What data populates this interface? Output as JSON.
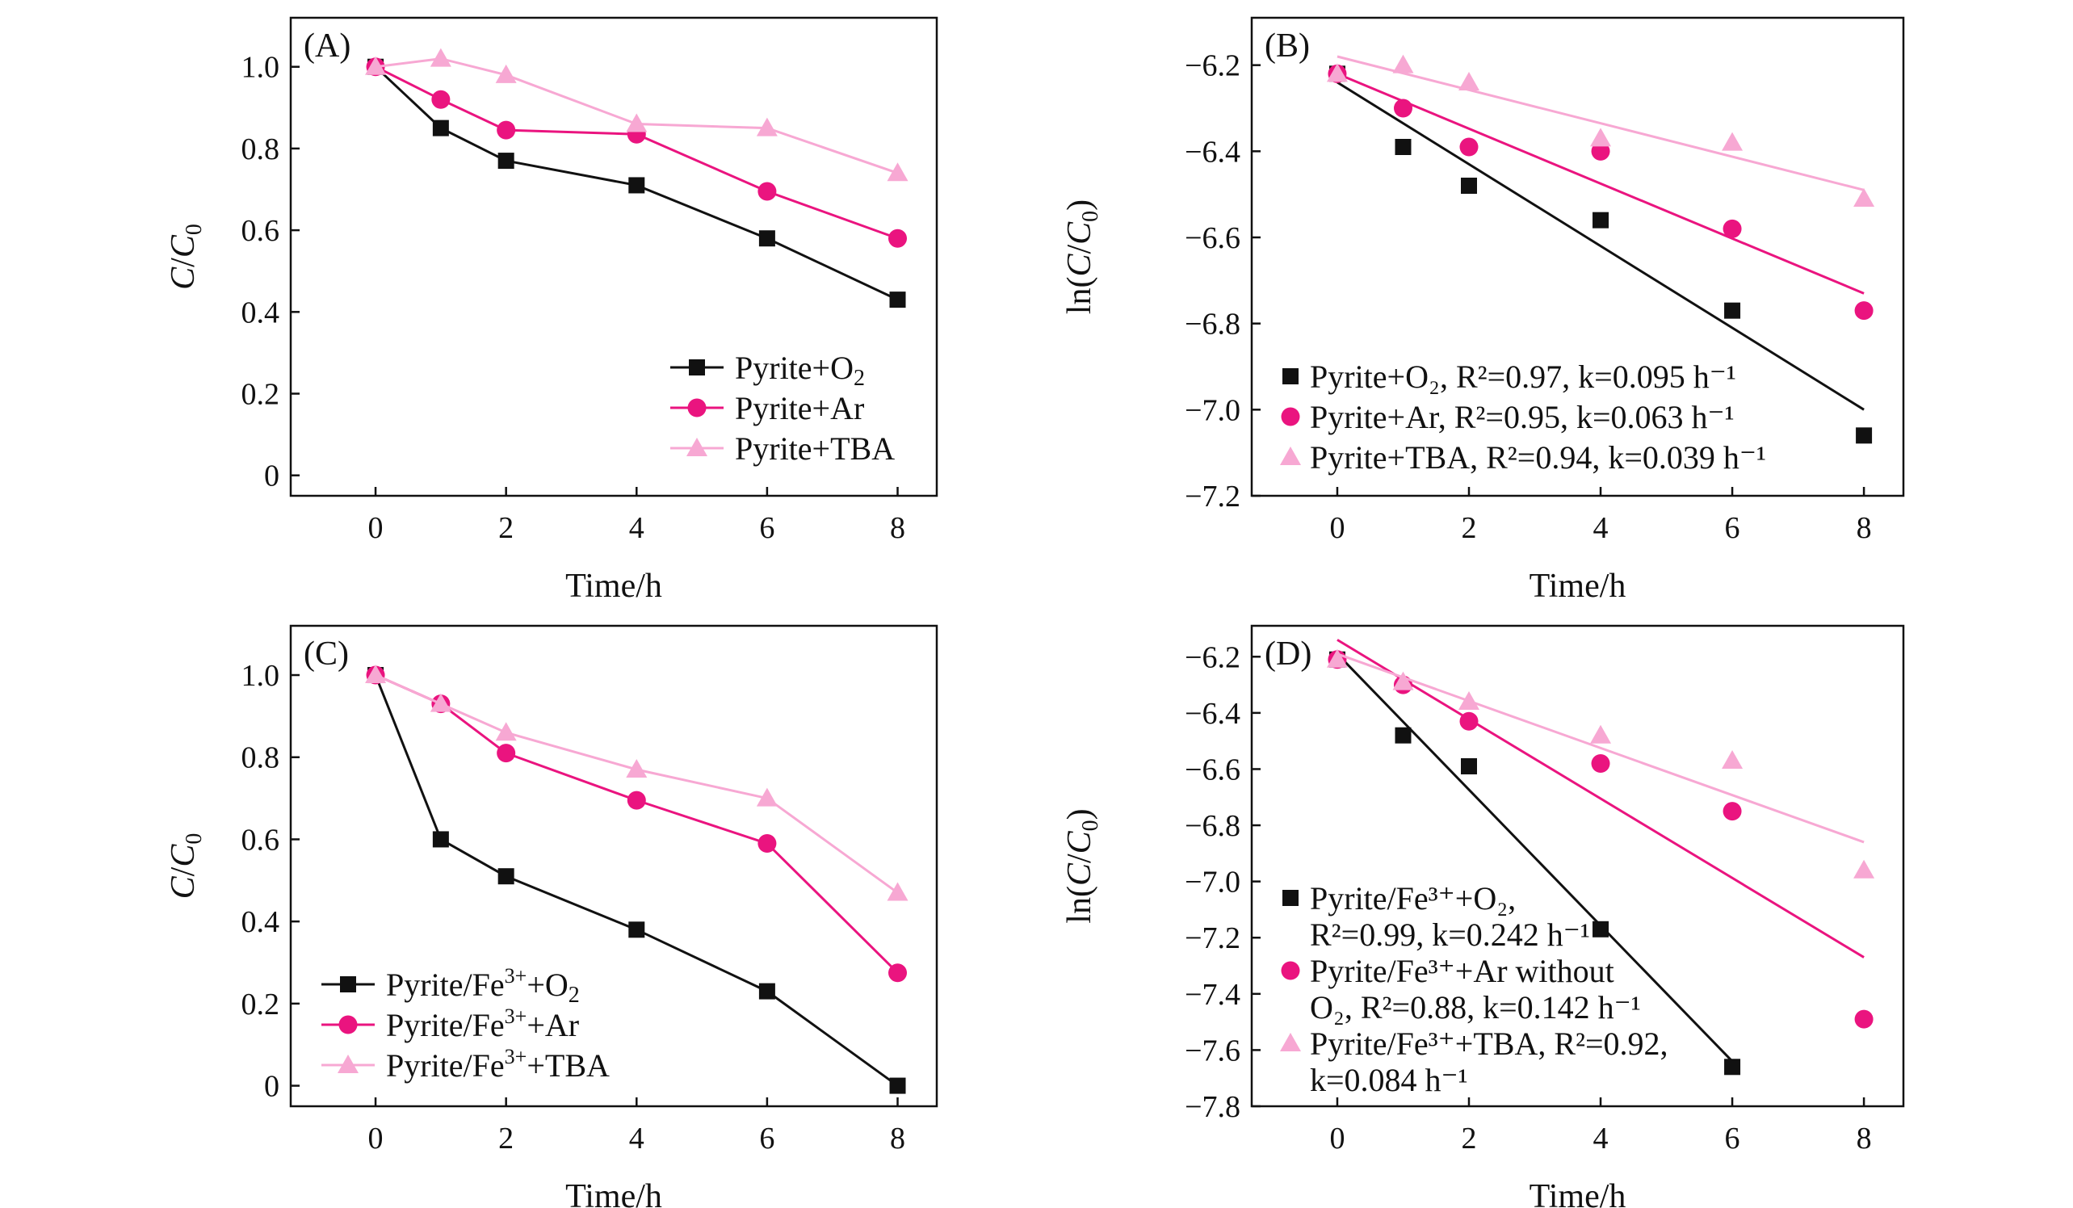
{
  "colors": {
    "o2": "#111111",
    "ar": "#ea147f",
    "tba": "#f7a8d3",
    "axis": "#111111"
  },
  "chart_data": [
    {
      "id": "A",
      "panel_label": "(A)",
      "type": "line",
      "fit": false,
      "xlabel": "Time/h",
      "ylabel": "C/C0",
      "ylabel_main": "C",
      "ylabel_sub": "0",
      "xlim": [
        -1.3,
        8.6
      ],
      "ylim": [
        -0.05,
        1.12
      ],
      "xticks": [
        0,
        2,
        4,
        6,
        8
      ],
      "xtick_labels": [
        "0",
        "2",
        "4",
        "6",
        "8"
      ],
      "yticks": [
        0,
        0.2,
        0.4,
        0.6,
        0.8,
        1.0
      ],
      "ytick_labels": [
        "0",
        "0.2",
        "0.4",
        "0.6",
        "0.8",
        "1.0"
      ],
      "legend_position": "lower-right",
      "series": [
        {
          "name": "Pyrite+O2",
          "legend_parts": [
            "Pyrite+O",
            "2",
            ""
          ],
          "color": "o2",
          "marker": "square",
          "x": [
            0,
            1,
            2,
            4,
            6,
            8
          ],
          "y": [
            1.0,
            0.85,
            0.77,
            0.71,
            0.58,
            0.43
          ]
        },
        {
          "name": "Pyrite+Ar",
          "legend_parts": [
            "Pyrite+Ar"
          ],
          "color": "ar",
          "marker": "circle",
          "x": [
            0,
            1,
            2,
            4,
            6,
            8
          ],
          "y": [
            1.0,
            0.92,
            0.845,
            0.835,
            0.695,
            0.58
          ]
        },
        {
          "name": "Pyrite+TBA",
          "legend_parts": [
            "Pyrite+TBA"
          ],
          "color": "tba",
          "marker": "triangle",
          "x": [
            0,
            1,
            2,
            4,
            6,
            8
          ],
          "y": [
            1.0,
            1.02,
            0.98,
            0.86,
            0.85,
            0.74
          ]
        }
      ]
    },
    {
      "id": "B",
      "panel_label": "(B)",
      "type": "scatter",
      "fit": true,
      "xlabel": "Time/h",
      "ylabel": "ln(C/C0)",
      "ylabel_pre": "ln(",
      "ylabel_main": "C",
      "ylabel_sub": "0",
      "ylabel_post": ")",
      "xlim": [
        -1.3,
        8.6
      ],
      "ylim": [
        -7.2,
        -6.09
      ],
      "xticks": [
        0,
        2,
        4,
        6,
        8
      ],
      "xtick_labels": [
        "0",
        "2",
        "4",
        "6",
        "8"
      ],
      "yticks": [
        -7.2,
        -7.0,
        -6.8,
        -6.6,
        -6.4,
        -6.2
      ],
      "ytick_labels": [
        "−7.2",
        "−7.0",
        "−6.8",
        "−6.6",
        "−6.4",
        "−6.2"
      ],
      "legend_position": "lower-left",
      "series": [
        {
          "name": "Pyrite+O2, R2=0.97, k=0.095 h−1",
          "legend_lines": [
            "Pyrite+O₂, R²=0.97, k=0.095 h⁻¹"
          ],
          "color": "o2",
          "marker": "square",
          "x": [
            0,
            1,
            2,
            4,
            6,
            8
          ],
          "y": [
            -6.22,
            -6.39,
            -6.48,
            -6.56,
            -6.77,
            -7.06
          ],
          "fit_line": {
            "x": [
              0,
              8
            ],
            "y": [
              -6.24,
              -7.0
            ]
          }
        },
        {
          "name": "Pyrite+Ar, R2=0.95, k=0.063 h−1",
          "legend_lines": [
            "Pyrite+Ar, R²=0.95, k=0.063 h⁻¹"
          ],
          "color": "ar",
          "marker": "circle",
          "x": [
            0,
            1,
            2,
            4,
            6,
            8
          ],
          "y": [
            -6.22,
            -6.3,
            -6.39,
            -6.4,
            -6.58,
            -6.77
          ],
          "fit_line": {
            "x": [
              0,
              8
            ],
            "y": [
              -6.22,
              -6.73
            ]
          }
        },
        {
          "name": "Pyrite+TBA, R2=0.94, k=0.039 h−1",
          "legend_lines": [
            "Pyrite+TBA, R²=0.94, k=0.039 h⁻¹"
          ],
          "color": "tba",
          "marker": "triangle",
          "x": [
            0,
            1,
            2,
            4,
            6,
            8
          ],
          "y": [
            -6.22,
            -6.2,
            -6.24,
            -6.37,
            -6.38,
            -6.51
          ],
          "fit_line": {
            "x": [
              0,
              8
            ],
            "y": [
              -6.18,
              -6.49
            ]
          }
        }
      ]
    },
    {
      "id": "C",
      "panel_label": "(C)",
      "type": "line",
      "fit": false,
      "xlabel": "Time/h",
      "ylabel": "C/C0",
      "ylabel_main": "C",
      "ylabel_sub": "0",
      "xlim": [
        -1.3,
        8.6
      ],
      "ylim": [
        -0.05,
        1.12
      ],
      "xticks": [
        0,
        2,
        4,
        6,
        8
      ],
      "xtick_labels": [
        "0",
        "2",
        "4",
        "6",
        "8"
      ],
      "yticks": [
        0,
        0.2,
        0.4,
        0.6,
        0.8,
        1.0
      ],
      "ytick_labels": [
        "0",
        "0.2",
        "0.4",
        "0.6",
        "0.8",
        "1.0"
      ],
      "legend_position": "lower-left",
      "series": [
        {
          "name": "Pyrite/Fe3++O2",
          "legend_parts": [
            "Pyrite/Fe",
            "3+",
            "+O",
            "2",
            ""
          ],
          "color": "o2",
          "marker": "square",
          "x": [
            0,
            1,
            2,
            4,
            6,
            8
          ],
          "y": [
            1.0,
            0.6,
            0.51,
            0.38,
            0.23,
            0.0
          ]
        },
        {
          "name": "Pyrite/Fe3++Ar",
          "legend_parts": [
            "Pyrite/Fe",
            "3+",
            "+Ar"
          ],
          "color": "ar",
          "marker": "circle",
          "x": [
            0,
            1,
            2,
            4,
            6,
            8
          ],
          "y": [
            1.0,
            0.93,
            0.81,
            0.695,
            0.59,
            0.275
          ]
        },
        {
          "name": "Pyrite/Fe3++TBA",
          "legend_parts": [
            "Pyrite/Fe",
            "3+",
            "+TBA"
          ],
          "color": "tba",
          "marker": "triangle",
          "x": [
            0,
            1,
            2,
            4,
            6,
            8
          ],
          "y": [
            1.0,
            0.93,
            0.86,
            0.77,
            0.7,
            0.47
          ]
        }
      ]
    },
    {
      "id": "D",
      "panel_label": "(D)",
      "type": "scatter",
      "fit": true,
      "xlabel": "Time/h",
      "ylabel": "ln(C/C0)",
      "ylabel_pre": "ln(",
      "ylabel_main": "C",
      "ylabel_sub": "0",
      "ylabel_post": ")",
      "xlim": [
        -1.3,
        8.6
      ],
      "ylim": [
        -7.8,
        -6.09
      ],
      "xticks": [
        0,
        2,
        4,
        6,
        8
      ],
      "xtick_labels": [
        "0",
        "2",
        "4",
        "6",
        "8"
      ],
      "yticks": [
        -7.8,
        -7.6,
        -7.4,
        -7.2,
        -7.0,
        -6.8,
        -6.6,
        -6.4,
        -6.2
      ],
      "ytick_labels": [
        "−7.8",
        "−7.6",
        "−7.4",
        "−7.2",
        "−7.0",
        "−6.8",
        "−6.6",
        "−6.4",
        "−6.2"
      ],
      "legend_position": "lower-left",
      "series": [
        {
          "name": "Pyrite/Fe3++O2, R2=0.99, k=0.242 h−1",
          "legend_lines": [
            "Pyrite/Fe³⁺+O₂,",
            "R²=0.99, k=0.242 h⁻¹"
          ],
          "color": "o2",
          "marker": "square",
          "x": [
            0,
            1,
            2,
            4,
            6
          ],
          "y": [
            -6.21,
            -6.48,
            -6.59,
            -7.17,
            -7.66
          ],
          "fit_line": {
            "x": [
              0,
              6
            ],
            "y": [
              -6.19,
              -7.64
            ]
          }
        },
        {
          "name": "Pyrite/Fe3++Ar without O2, R2=0.88, k=0.142 h−1",
          "legend_lines": [
            "Pyrite/Fe³⁺+Ar without",
            "O₂, R²=0.88, k=0.142 h⁻¹"
          ],
          "color": "ar",
          "marker": "circle",
          "x": [
            0,
            1,
            2,
            4,
            6,
            8
          ],
          "y": [
            -6.21,
            -6.3,
            -6.43,
            -6.58,
            -6.75,
            -7.49
          ],
          "fit_line": {
            "x": [
              0,
              8
            ],
            "y": [
              -6.14,
              -7.27
            ]
          }
        },
        {
          "name": "Pyrite/Fe3++TBA, R2=0.92, k=0.084 h−1",
          "legend_lines": [
            "Pyrite/Fe³⁺+TBA, R²=0.92,",
            "k=0.084 h⁻¹"
          ],
          "color": "tba",
          "marker": "triangle",
          "x": [
            0,
            1,
            2,
            4,
            6,
            8
          ],
          "y": [
            -6.21,
            -6.29,
            -6.36,
            -6.48,
            -6.57,
            -6.96
          ],
          "fit_line": {
            "x": [
              0,
              8
            ],
            "y": [
              -6.19,
              -6.86
            ]
          }
        }
      ]
    }
  ]
}
